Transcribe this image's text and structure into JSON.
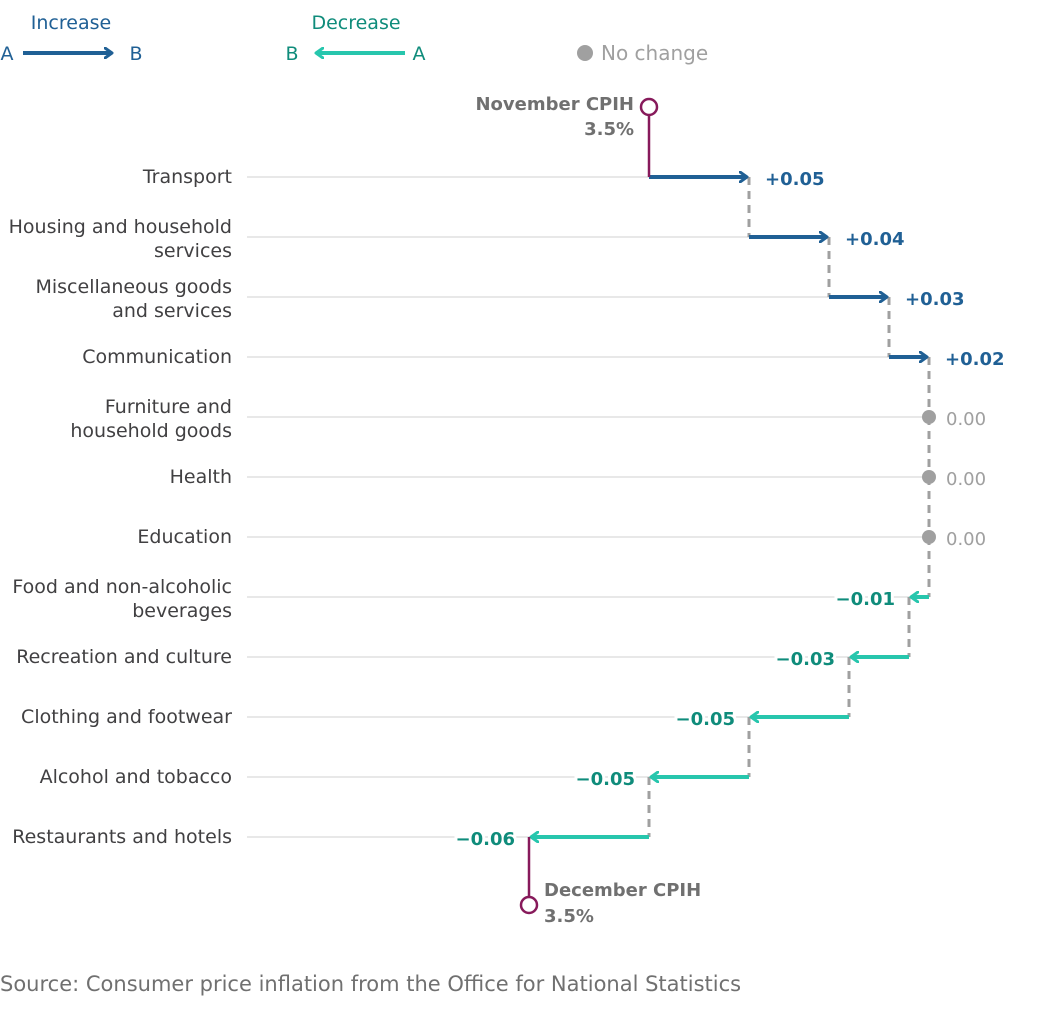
{
  "chart_data": {
    "type": "waterfall-arrows",
    "title": "",
    "start": {
      "label": "November CPIH",
      "value_label": "3.5%",
      "value": 3.5
    },
    "end": {
      "label": "December CPIH",
      "value_label": "3.5%",
      "value": 3.5
    },
    "categories": [
      "Transport",
      "Housing and household services",
      "Miscellaneous goods and services",
      "Communication",
      "Furniture and household goods",
      "Health",
      "Education",
      "Food and non-alcoholic beverages",
      "Recreation and culture",
      "Clothing and footwear",
      "Alcohol and tobacco",
      "Restaurants and hotels"
    ],
    "category_lines": [
      [
        "Transport"
      ],
      [
        "Housing and household",
        "services"
      ],
      [
        "Miscellaneous goods",
        "and services"
      ],
      [
        "Communication"
      ],
      [
        "Furniture and",
        "household goods"
      ],
      [
        "Health"
      ],
      [
        "Education"
      ],
      [
        "Food and non-alcoholic",
        "beverages"
      ],
      [
        "Recreation and culture"
      ],
      [
        "Clothing and footwear"
      ],
      [
        "Alcohol and tobacco"
      ],
      [
        "Restaurants and hotels"
      ]
    ],
    "values": [
      0.05,
      0.04,
      0.03,
      0.02,
      0.0,
      0.0,
      0.0,
      -0.01,
      -0.03,
      -0.05,
      -0.05,
      -0.06
    ],
    "value_labels": [
      "+0.05",
      "+0.04",
      "+0.03",
      "+0.02",
      "0.00",
      "0.00",
      "0.00",
      "−0.01",
      "−0.03",
      "−0.05",
      "−0.05",
      "−0.06"
    ],
    "legend": {
      "increase": {
        "title": "Increase",
        "from": "A",
        "to": "B"
      },
      "decrease": {
        "title": "Decrease",
        "from": "A",
        "to": "B"
      },
      "no_change": {
        "label": "No change"
      },
      "placement": "top"
    },
    "colors": {
      "increase": "#206095",
      "decrease": "#27c6ad",
      "decrease_text": "#0f8c7b",
      "no_change": "#a0a0a0",
      "cpih_marker": "#871a5b",
      "connector": "#a0a0a0",
      "gridline": "#e0e0e0"
    },
    "source": "Source: Consumer price inflation from the Office for National Statistics"
  }
}
